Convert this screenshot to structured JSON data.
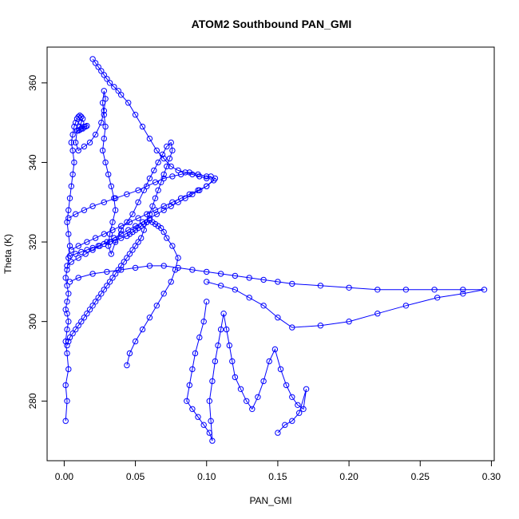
{
  "chart_data": {
    "type": "scatter",
    "title": "ATOM2 Southbound PAN_GMI",
    "xlabel": "PAN_GMI",
    "ylabel": "Theta (K)",
    "xlim": [
      -0.012,
      0.302
    ],
    "ylim": [
      265,
      369
    ],
    "xticks": [
      0.0,
      0.05,
      0.1,
      0.15,
      0.2,
      0.25,
      0.3
    ],
    "xtick_labels": [
      "0.00",
      "0.05",
      "0.10",
      "0.15",
      "0.20",
      "0.25",
      "0.30"
    ],
    "yticks": [
      280,
      300,
      320,
      340,
      360
    ],
    "ytick_labels": [
      "280",
      "300",
      "320",
      "340",
      "360"
    ],
    "grid": false,
    "legend": "none",
    "marker": "open-circle",
    "connected": true,
    "color": "#0000ff",
    "series": [
      {
        "x": [
          0.001,
          0.002,
          0.001,
          0.003,
          0.002,
          0.001,
          0.002,
          0.003,
          0.002,
          0.001,
          0.002,
          0.003,
          0.002,
          0.001,
          0.002,
          0.003,
          0.004,
          0.003,
          0.002,
          0.003,
          0.004,
          0.005,
          0.006,
          0.007,
          0.006,
          0.005,
          0.006,
          0.007,
          0.008,
          0.009,
          0.01,
          0.011,
          0.012,
          0.013,
          0.012,
          0.011,
          0.01,
          0.012,
          0.014,
          0.016,
          0.015,
          0.013,
          0.011,
          0.009,
          0.008,
          0.01,
          0.014,
          0.018,
          0.022,
          0.026,
          0.028,
          0.029,
          0.028,
          0.027,
          0.028,
          0.029,
          0.028,
          0.027,
          0.029,
          0.031,
          0.033,
          0.035,
          0.036,
          0.034,
          0.032,
          0.031,
          0.033,
          0.036,
          0.04,
          0.044,
          0.048,
          0.052,
          0.056,
          0.06,
          0.063,
          0.066,
          0.069,
          0.072,
          0.075,
          0.076,
          0.074,
          0.072,
          0.07,
          0.068,
          0.066,
          0.064,
          0.062,
          0.06,
          0.058,
          0.056,
          0.054,
          0.052,
          0.05,
          0.048,
          0.046,
          0.044,
          0.042,
          0.04,
          0.038,
          0.036,
          0.034,
          0.032,
          0.03,
          0.028,
          0.026,
          0.024,
          0.022,
          0.02,
          0.018,
          0.016,
          0.014,
          0.012,
          0.01,
          0.008,
          0.006,
          0.004,
          0.003,
          0.002
        ],
        "y": [
          275.0,
          280.0,
          284.0,
          288.0,
          292.0,
          295.0,
          298.0,
          300.0,
          302.0,
          303.0,
          305.0,
          307.0,
          309.0,
          311.0,
          313.0,
          316.0,
          319.0,
          322.0,
          325.0,
          328.0,
          331.0,
          334.0,
          337.0,
          340.0,
          343.0,
          345.0,
          347.0,
          349.0,
          350.0,
          351.0,
          351.5,
          351.8,
          351.5,
          351.0,
          350.0,
          349.0,
          348.0,
          348.5,
          349.0,
          349.2,
          349.0,
          348.5,
          348.2,
          348.0,
          345.0,
          343.0,
          344.0,
          345.0,
          347.0,
          350.0,
          353.0,
          356.0,
          358.0,
          355.0,
          352.0,
          349.0,
          346.0,
          343.0,
          340.0,
          337.0,
          334.0,
          331.0,
          328.0,
          325.0,
          322.0,
          319.0,
          317.0,
          320.0,
          323.0,
          325.0,
          327.0,
          330.0,
          333.0,
          336.0,
          338.0,
          340.0,
          342.0,
          344.0,
          345.0,
          343.0,
          341.0,
          339.0,
          337.0,
          335.0,
          333.0,
          331.0,
          329.0,
          327.0,
          325.0,
          323.0,
          321.0,
          320.0,
          319.0,
          318.0,
          317.0,
          316.0,
          315.0,
          314.0,
          313.0,
          312.0,
          311.0,
          310.0,
          309.0,
          308.0,
          307.0,
          306.0,
          305.0,
          304.0,
          303.0,
          302.0,
          301.0,
          300.0,
          299.0,
          298.0,
          297.0,
          296.0,
          295.0,
          294.0
        ]
      },
      {
        "x": [
          0.02,
          0.022,
          0.024,
          0.026,
          0.028,
          0.03,
          0.032,
          0.035,
          0.038,
          0.04,
          0.045,
          0.05,
          0.055,
          0.06,
          0.065,
          0.07,
          0.075,
          0.08,
          0.085,
          0.09,
          0.095,
          0.1,
          0.103,
          0.105,
          0.1,
          0.095,
          0.09,
          0.085,
          0.08,
          0.075,
          0.07,
          0.065,
          0.06,
          0.055,
          0.05,
          0.045,
          0.04,
          0.035,
          0.03,
          0.025,
          0.02,
          0.015,
          0.01,
          0.005,
          0.002
        ],
        "y": [
          366.0,
          365.0,
          364.0,
          363.0,
          362.0,
          361.0,
          360.0,
          359.0,
          358.0,
          357.0,
          355.0,
          352.0,
          349.0,
          346.0,
          343.0,
          341.0,
          339.0,
          338.0,
          337.5,
          337.0,
          336.5,
          336.0,
          336.5,
          335.5,
          334.0,
          333.0,
          332.0,
          331.0,
          330.0,
          329.0,
          328.0,
          327.0,
          326.0,
          325.0,
          324.0,
          323.0,
          322.0,
          321.0,
          320.0,
          319.0,
          318.0,
          317.0,
          316.0,
          315.0,
          314.0
        ]
      },
      {
        "x": [
          0.004,
          0.01,
          0.02,
          0.03,
          0.04,
          0.05,
          0.06,
          0.07,
          0.08,
          0.09,
          0.1,
          0.11,
          0.12,
          0.13,
          0.14,
          0.15,
          0.16,
          0.18,
          0.2,
          0.22,
          0.24,
          0.26,
          0.28,
          0.295,
          0.28,
          0.262,
          0.24,
          0.22,
          0.2,
          0.18,
          0.16,
          0.15,
          0.14,
          0.13,
          0.12,
          0.11,
          0.1
        ],
        "y": [
          310.0,
          311.0,
          312.0,
          312.5,
          313.0,
          313.5,
          314.0,
          314.0,
          313.5,
          313.0,
          312.5,
          312.0,
          311.5,
          311.0,
          310.5,
          310.0,
          309.5,
          309.0,
          308.5,
          308.0,
          308.0,
          308.0,
          308.0,
          308.0,
          307.0,
          306.0,
          304.0,
          302.0,
          300.0,
          299.0,
          298.5,
          301.0,
          304.0,
          306.0,
          308.0,
          309.0,
          310.0
        ]
      },
      {
        "x": [
          0.1,
          0.098,
          0.095,
          0.092,
          0.09,
          0.088,
          0.086,
          0.09,
          0.094,
          0.098,
          0.102,
          0.104,
          0.103,
          0.102,
          0.104,
          0.106,
          0.108,
          0.11,
          0.112,
          0.114,
          0.116,
          0.118,
          0.12,
          0.124,
          0.128,
          0.132,
          0.136,
          0.14,
          0.144,
          0.148,
          0.152,
          0.156,
          0.16,
          0.164,
          0.168,
          0.17,
          0.165,
          0.16,
          0.155,
          0.15
        ],
        "y": [
          305.0,
          300.0,
          296.0,
          292.0,
          288.0,
          284.0,
          280.0,
          278.0,
          276.0,
          274.0,
          272.0,
          270.0,
          275.0,
          280.0,
          285.0,
          290.0,
          294.0,
          298.0,
          302.0,
          298.0,
          294.0,
          290.0,
          286.0,
          283.0,
          280.0,
          278.0,
          281.0,
          285.0,
          290.0,
          293.0,
          288.0,
          284.0,
          281.0,
          279.0,
          278.0,
          283.0,
          277.0,
          275.0,
          274.0,
          272.0
        ]
      },
      {
        "x": [
          0.044,
          0.046,
          0.05,
          0.055,
          0.06,
          0.065,
          0.07,
          0.075,
          0.078,
          0.08,
          0.076,
          0.072,
          0.07,
          0.068,
          0.066,
          0.064,
          0.062,
          0.06,
          0.058,
          0.056,
          0.054,
          0.052,
          0.05,
          0.048,
          0.046,
          0.044,
          0.04,
          0.036,
          0.032,
          0.028,
          0.024,
          0.02,
          0.016,
          0.012,
          0.008,
          0.004
        ],
        "y": [
          289.0,
          292.0,
          295.0,
          298.0,
          301.0,
          304.0,
          307.0,
          310.0,
          313.0,
          316.0,
          319.0,
          321.0,
          322.5,
          323.5,
          324.0,
          324.5,
          325.0,
          325.5,
          325.0,
          324.5,
          324.0,
          323.5,
          323.0,
          322.5,
          322.0,
          321.5,
          321.0,
          320.5,
          320.0,
          319.5,
          319.0,
          318.5,
          318.0,
          317.5,
          317.0,
          316.5
        ]
      },
      {
        "x": [
          0.003,
          0.008,
          0.014,
          0.02,
          0.028,
          0.036,
          0.044,
          0.052,
          0.058,
          0.064,
          0.07,
          0.076,
          0.082,
          0.088,
          0.094,
          0.1,
          0.106,
          0.1,
          0.094,
          0.088,
          0.082,
          0.076,
          0.07,
          0.064,
          0.058,
          0.052,
          0.046,
          0.04,
          0.034,
          0.028,
          0.022,
          0.016,
          0.01,
          0.005
        ],
        "y": [
          326.0,
          327.0,
          328.0,
          329.0,
          330.0,
          331.0,
          332.0,
          333.0,
          334.0,
          335.0,
          336.0,
          336.5,
          337.0,
          337.5,
          337.0,
          336.5,
          336.0,
          334.0,
          333.0,
          332.0,
          331.0,
          330.0,
          329.0,
          328.0,
          327.0,
          326.0,
          325.0,
          324.0,
          323.0,
          322.0,
          321.0,
          320.0,
          319.0,
          318.0
        ]
      }
    ]
  }
}
